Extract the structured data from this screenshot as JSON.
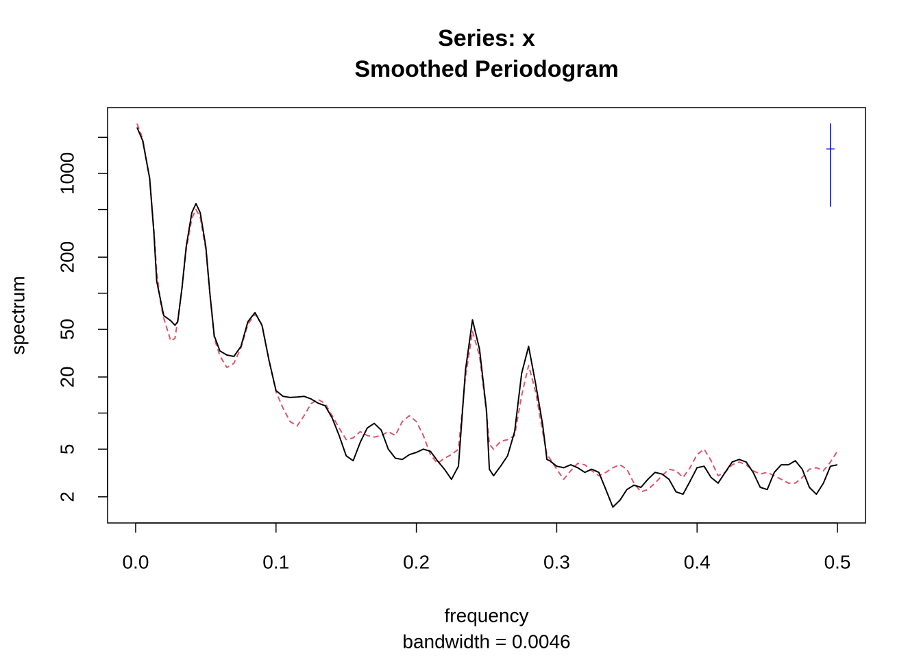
{
  "chart_data": {
    "type": "line",
    "title": "Series: x",
    "subtitle": "Smoothed Periodogram",
    "x_label": "frequency",
    "x_sublabel": "bandwidth = 0.0046",
    "y_label": "spectrum",
    "log_y": true,
    "xlim": [
      -0.02,
      0.52
    ],
    "ylim": [
      1.21,
      3540
    ],
    "xticks": [
      {
        "value": 0,
        "label": "0.0"
      },
      0.1,
      0.2,
      0.3,
      0.4,
      0.5
    ],
    "yticks": [
      2,
      5,
      20,
      50,
      200,
      1000
    ],
    "yticks_minor": [
      10,
      100,
      500,
      2000
    ],
    "x": [
      0.001,
      0.005,
      0.01,
      0.013,
      0.015,
      0.018,
      0.02,
      0.025,
      0.028,
      0.03,
      0.033,
      0.036,
      0.04,
      0.043,
      0.046,
      0.05,
      0.053,
      0.056,
      0.06,
      0.065,
      0.07,
      0.075,
      0.08,
      0.085,
      0.09,
      0.095,
      0.1,
      0.105,
      0.11,
      0.115,
      0.12,
      0.125,
      0.13,
      0.135,
      0.14,
      0.145,
      0.15,
      0.155,
      0.16,
      0.165,
      0.17,
      0.175,
      0.18,
      0.185,
      0.19,
      0.195,
      0.2,
      0.205,
      0.21,
      0.215,
      0.22,
      0.225,
      0.23,
      0.235,
      0.24,
      0.245,
      0.25,
      0.252,
      0.255,
      0.26,
      0.265,
      0.27,
      0.275,
      0.28,
      0.285,
      0.29,
      0.293,
      0.295,
      0.3,
      0.305,
      0.31,
      0.315,
      0.32,
      0.325,
      0.33,
      0.335,
      0.34,
      0.345,
      0.35,
      0.355,
      0.36,
      0.365,
      0.37,
      0.375,
      0.38,
      0.385,
      0.39,
      0.395,
      0.4,
      0.405,
      0.41,
      0.415,
      0.42,
      0.425,
      0.43,
      0.435,
      0.44,
      0.445,
      0.45,
      0.455,
      0.46,
      0.465,
      0.47,
      0.475,
      0.48,
      0.485,
      0.49,
      0.495,
      0.5
    ],
    "series": [
      {
        "color": "#000000",
        "dash": false,
        "values": [
          2415,
          1880,
          910,
          317,
          126,
          85,
          65,
          59,
          54,
          58,
          111,
          244,
          470,
          560,
          470,
          244,
          97,
          44,
          33,
          30.5,
          29.7,
          36,
          58,
          69,
          54,
          27.6,
          15.4,
          13.8,
          13.5,
          13.6,
          13.8,
          13.1,
          12.1,
          11.5,
          9.1,
          6.5,
          4.4,
          4.0,
          5.7,
          7.5,
          8.2,
          7.2,
          5.0,
          4.2,
          4.1,
          4.5,
          4.7,
          5.0,
          4.8,
          4.0,
          3.4,
          2.8,
          3.6,
          22.9,
          60,
          34,
          10.4,
          3.4,
          3.0,
          3.6,
          4.4,
          7.0,
          21.4,
          36,
          17.5,
          8.0,
          4.1,
          4.0,
          3.6,
          3.5,
          3.7,
          3.5,
          3.2,
          3.4,
          3.2,
          2.3,
          1.64,
          1.87,
          2.3,
          2.5,
          2.4,
          2.8,
          3.2,
          3.1,
          2.8,
          2.2,
          2.1,
          2.7,
          3.5,
          3.6,
          2.9,
          2.6,
          3.2,
          3.9,
          4.1,
          3.9,
          3.2,
          2.4,
          2.3,
          3.2,
          3.7,
          3.7,
          4.0,
          3.4,
          2.4,
          2.1,
          2.6,
          3.6,
          3.7
        ]
      },
      {
        "color": "#DF536B",
        "dash": true,
        "values": [
          2600,
          1950,
          900,
          340,
          150,
          80,
          62,
          40,
          42,
          60,
          110,
          230,
          420,
          500,
          430,
          230,
          95,
          42,
          30,
          24,
          26,
          35,
          55,
          67,
          55,
          28,
          15,
          11,
          8.5,
          7.8,
          9.5,
          12,
          13,
          12,
          9.5,
          7.5,
          6.0,
          6.2,
          7.0,
          6.5,
          6.3,
          6.5,
          7.0,
          6.5,
          8.5,
          9.5,
          8.5,
          6.5,
          4.5,
          3.8,
          4.2,
          4.5,
          5.0,
          20,
          48,
          30,
          10,
          5.5,
          5.0,
          5.8,
          6.0,
          6.5,
          14,
          25,
          15,
          7,
          4.5,
          4.2,
          3.4,
          2.8,
          3.3,
          3.8,
          3.7,
          3.3,
          3.0,
          3.2,
          3.5,
          3.7,
          3.4,
          2.6,
          2.2,
          2.3,
          2.6,
          3.0,
          3.4,
          3.3,
          2.9,
          3.5,
          4.5,
          5.0,
          4.0,
          3.0,
          3.2,
          3.7,
          3.9,
          3.7,
          3.3,
          3.1,
          3.2,
          3.0,
          2.8,
          2.6,
          2.6,
          2.9,
          3.4,
          3.5,
          3.3,
          3.9,
          4.8
        ]
      }
    ],
    "ci_bar": {
      "x": 0.495,
      "center": 1600,
      "upper": 2610,
      "lower": 527,
      "color": "#0000ff"
    }
  }
}
